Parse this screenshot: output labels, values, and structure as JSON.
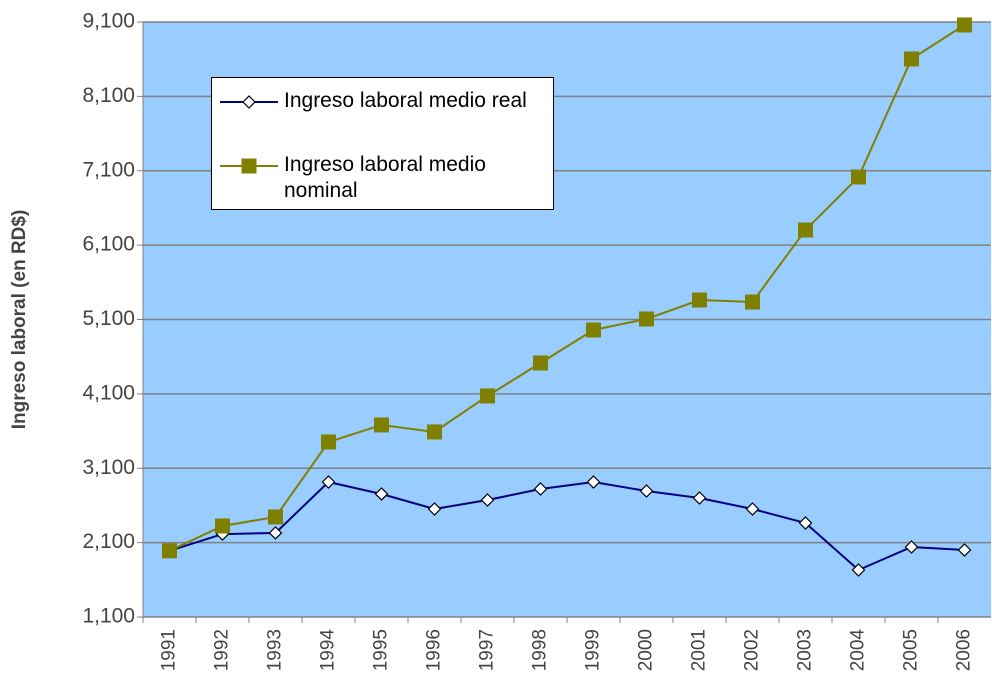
{
  "chart_data": {
    "type": "line",
    "y_label": "Ingreso laboral (en RD$)",
    "categories": [
      "1991",
      "1992",
      "1993",
      "1994",
      "1995",
      "1996",
      "1997",
      "1998",
      "1999",
      "2000",
      "2001",
      "2002",
      "2003",
      "2004",
      "2005",
      "2006"
    ],
    "series": [
      {
        "name": "Ingreso laboral medio real",
        "color": "#000080",
        "marker": "diamond",
        "values": [
          1990,
          2215,
          2230,
          2915,
          2754,
          2552,
          2673,
          2821,
          2915,
          2794,
          2700,
          2552,
          2364,
          1732,
          2041,
          2001
        ]
      },
      {
        "name": "Ingreso laboral medio nominal",
        "color": "#808000",
        "marker": "square",
        "values": [
          1990,
          2324,
          2445,
          3453,
          3682,
          3588,
          4072,
          4515,
          4959,
          5107,
          5362,
          5335,
          6303,
          7016,
          8603,
          9060
        ]
      }
    ],
    "ylim": [
      1100,
      9100
    ],
    "yticks": [
      {
        "value": 1100,
        "label": "1,100"
      },
      {
        "value": 2100,
        "label": "2,100"
      },
      {
        "value": 3100,
        "label": "3,100"
      },
      {
        "value": 4100,
        "label": "4,100"
      },
      {
        "value": 5100,
        "label": "5,100"
      },
      {
        "value": 6100,
        "label": "6,100"
      },
      {
        "value": 7100,
        "label": "7,100"
      },
      {
        "value": 8100,
        "label": "8,100"
      },
      {
        "value": 9100,
        "label": "9,100"
      }
    ],
    "grid": true,
    "background": "#99ccff"
  }
}
